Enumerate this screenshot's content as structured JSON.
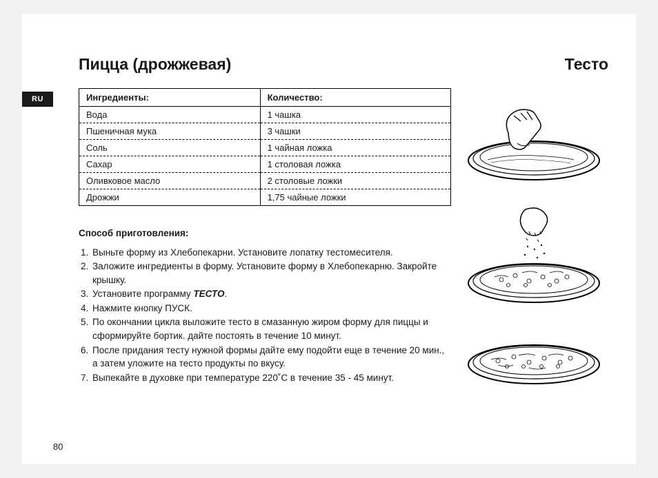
{
  "lang_tab": "RU",
  "title_left": "Пицца (дрожжевая)",
  "title_right": "Тесто",
  "ingredients": {
    "header_left": "Ингредиенты:",
    "header_right": "Количество:",
    "rows": [
      {
        "name": "Вода",
        "qty": "1 чашка"
      },
      {
        "name": "Пшеничная мука",
        "qty": "3 чашки"
      },
      {
        "name": "Соль",
        "qty": "1 чайная ложка"
      },
      {
        "name": "Сахар",
        "qty": "1 столовая ложка"
      },
      {
        "name": "Оливковое масло",
        "qty": "2 столовые ложки"
      },
      {
        "name": "Дрожжи",
        "qty": "1,75 чайные ложки"
      }
    ]
  },
  "method": {
    "title": "Способ приготовления:",
    "program_word": "ТЕСТО",
    "steps": [
      "Выньте форму из Хлебопекарни. Установите лопатку тестомесителя.",
      "Заложите ингредиенты в форму. Установите форму в Хлебопекарню. Закройте крышку.",
      "Установите программу <b><i>ТЕСТО</i></b>.",
      "Нажмите кнопку ПУСК.",
      "По окончании цикла выложите тесто в смазанную жиром форму для пиццы и сформируйте бортик. дайте постоять в течение 10 минут.",
      "После придания тесту нужной формы дайте ему подойти еще в течение 20 мин., а затем уложите на тесто продукты по вкусу.",
      "Выпекайте в духовке при температуре 220˚С в течение 35 - 45 минут."
    ]
  },
  "page_number": "80",
  "style": {
    "page_bg": "#ffffff",
    "outer_bg": "#f2f2f2",
    "text_color": "#1a1a1a",
    "tab_bg": "#1a1a1a",
    "title_fontsize": 23,
    "body_fontsize": 13.5,
    "table_fontsize": 13,
    "table_border": "1.5px solid #000",
    "row_border": "1px dashed #000"
  }
}
